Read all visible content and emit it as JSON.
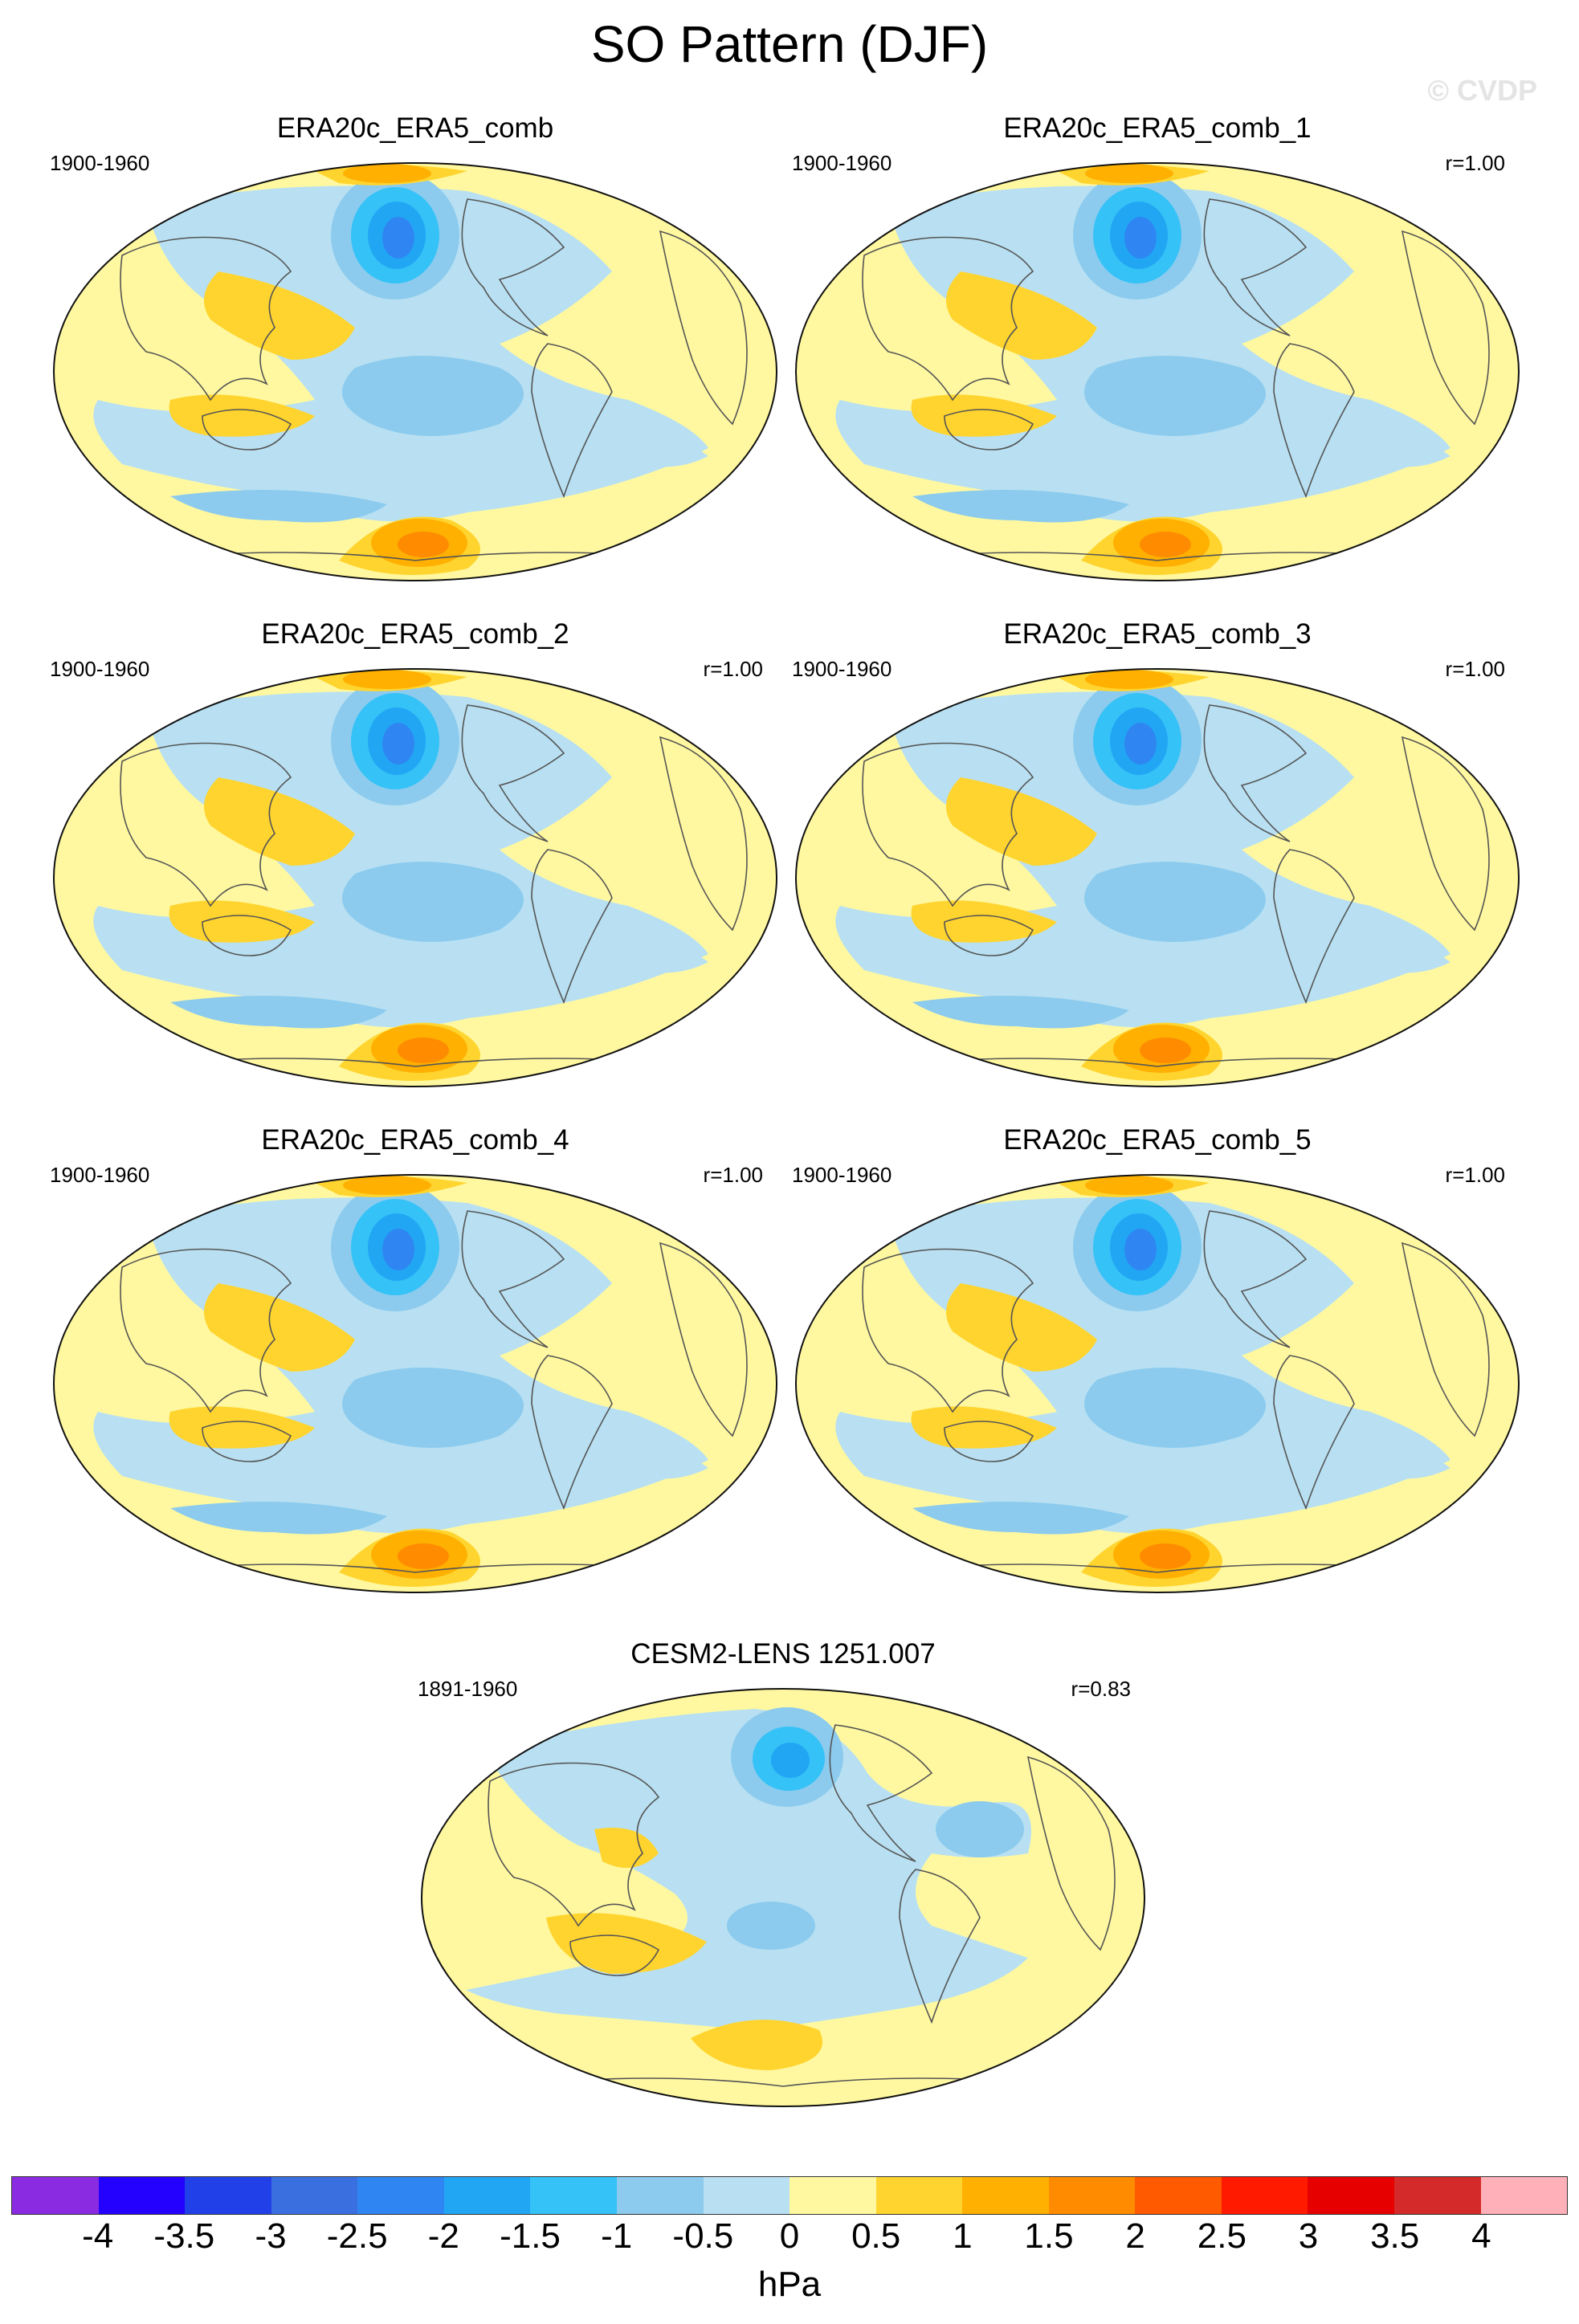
{
  "title": "SO Pattern (DJF)",
  "watermark": "© CVDP",
  "panels": [
    {
      "title": "ERA20c_ERA5_comb",
      "years": "1900-1960",
      "corr": ""
    },
    {
      "title": "ERA20c_ERA5_comb_1",
      "years": "1900-1960",
      "corr": "r=1.00"
    },
    {
      "title": "ERA20c_ERA5_comb_2",
      "years": "1900-1960",
      "corr": "r=1.00"
    },
    {
      "title": "ERA20c_ERA5_comb_3",
      "years": "1900-1960",
      "corr": "r=1.00"
    },
    {
      "title": "ERA20c_ERA5_comb_4",
      "years": "1900-1960",
      "corr": "r=1.00"
    },
    {
      "title": "ERA20c_ERA5_comb_5",
      "years": "1900-1960",
      "corr": "r=1.00"
    },
    {
      "title": "CESM2-LENS 1251.007",
      "years": "1891-1960",
      "corr": "r=0.83"
    }
  ],
  "colorbar": {
    "unit": "hPa",
    "labels": [
      "-4",
      "-3.5",
      "-3",
      "-2.5",
      "-2",
      "-1.5",
      "-1",
      "-0.5",
      "0",
      "0.5",
      "1",
      "1.5",
      "2",
      "2.5",
      "3",
      "3.5",
      "4"
    ],
    "colors": [
      "#8a2be2",
      "#2400ff",
      "#2240e8",
      "#3a6fe0",
      "#2f86f2",
      "#21a6f4",
      "#34c2f7",
      "#8ccbee",
      "#b8e0f2",
      "#fff8a0",
      "#ffd42e",
      "#ffb000",
      "#ff8c00",
      "#ff5a00",
      "#ff1a00",
      "#e60000",
      "#d42a2a",
      "#ffb0b8"
    ]
  }
}
